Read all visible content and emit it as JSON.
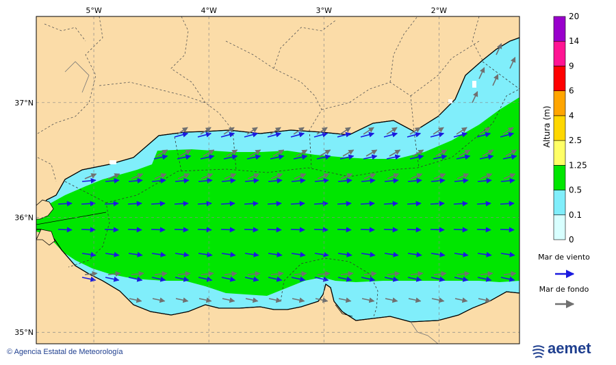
{
  "map": {
    "lon_ticks": [
      "5°W",
      "4°W",
      "3°W",
      "2°W"
    ],
    "lon_values": [
      -5,
      -4,
      -3,
      -2
    ],
    "lat_ticks": [
      "37°N",
      "36°N",
      "35°N"
    ],
    "lat_values": [
      37,
      36,
      35
    ],
    "extent": {
      "lon": [
        -5.5,
        -1.3
      ],
      "lat": [
        34.9,
        37.75
      ]
    },
    "colors": {
      "land": "#fbdca8",
      "sea_0_0_1": "#d8ffff",
      "sea_0_1_0_5": "#80eefb",
      "sea_0_5_1_25": "#00e600",
      "coast": "#000000",
      "grid": "#888888",
      "wind_arrow": "#1a1adf",
      "swell_arrow": "#707070"
    }
  },
  "legend": {
    "title": "Altura (m)",
    "levels": [
      "0",
      "0.1",
      "0.5",
      "1.25",
      "2.5",
      "4",
      "6",
      "9",
      "14",
      "20"
    ],
    "colors": [
      "#d8ffff",
      "#80eefb",
      "#00e600",
      "#ffff66",
      "#ffd700",
      "#ffa500",
      "#ff0000",
      "#ff1493",
      "#9900cc"
    ]
  },
  "arrows_legend": {
    "wind_label": "Mar de viento",
    "swell_label": "Mar de fondo"
  },
  "footer": {
    "copyright": "Agencia Estatal de Meteorología",
    "logo_text": "aemet"
  }
}
